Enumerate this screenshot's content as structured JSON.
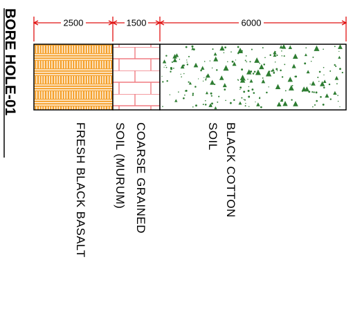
{
  "title": "BORE HOLE-01",
  "dimensions": {
    "basalt": "2500",
    "murum": "1500",
    "cotton": "6000"
  },
  "layers": {
    "basalt": {
      "label_line1": "FRESH  BLACK  BASALT",
      "fill_color": "#f5a02a",
      "hatch_color": "#ffffff"
    },
    "murum": {
      "label_line1": "COARSE  GRAINED",
      "label_line2": "SOIL  (MURUM)",
      "line_color": "#f07a80"
    },
    "cotton": {
      "label_line1": "BLACK  COTTON",
      "label_line2": "SOIL",
      "dot_color": "#2e7d32"
    }
  },
  "colors": {
    "dimension_line": "#e01010",
    "outline": "#000000"
  }
}
